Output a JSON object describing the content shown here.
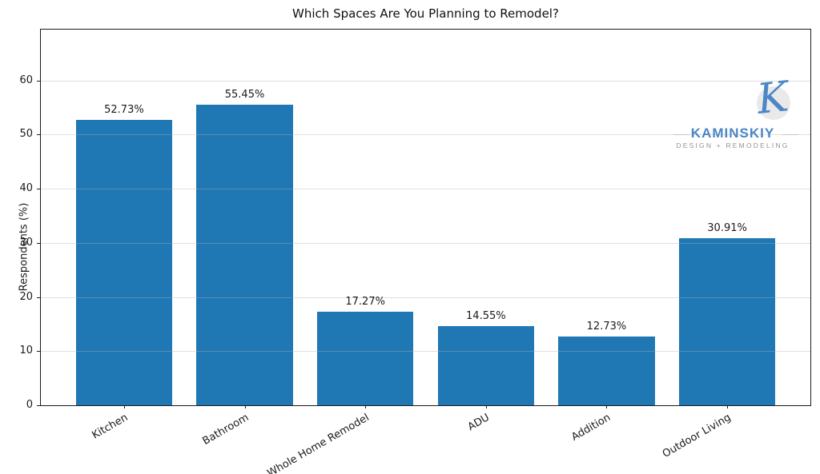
{
  "chart_data": {
    "type": "bar",
    "title": "Which Spaces Are You Planning to Remodel?",
    "categories": [
      "Kitchen",
      "Bathroom",
      "Whole Home Remodel",
      "ADU",
      "Addition",
      "Outdoor Living"
    ],
    "values": [
      52.73,
      55.45,
      17.27,
      14.55,
      12.73,
      30.91
    ],
    "bar_labels": [
      "52.73%",
      "55.45%",
      "17.27%",
      "14.55%",
      "12.73%",
      "30.91%"
    ],
    "xlabel": "",
    "ylabel": "Respondents (%)",
    "yticks": [
      0,
      10,
      20,
      30,
      40,
      50,
      60
    ],
    "ylim": [
      0,
      69.4
    ],
    "grid": "horizontal",
    "legend": "none",
    "bar_color": "#1f77b4",
    "background_color": "#ffffff"
  },
  "logo": {
    "monogram": "K",
    "name": "KAMINSKIY",
    "tagline": "DESIGN + REMODELING",
    "monogram_color": "#4c87c5",
    "name_color": "#4a86c4",
    "tagline_color": "#8f9398"
  }
}
